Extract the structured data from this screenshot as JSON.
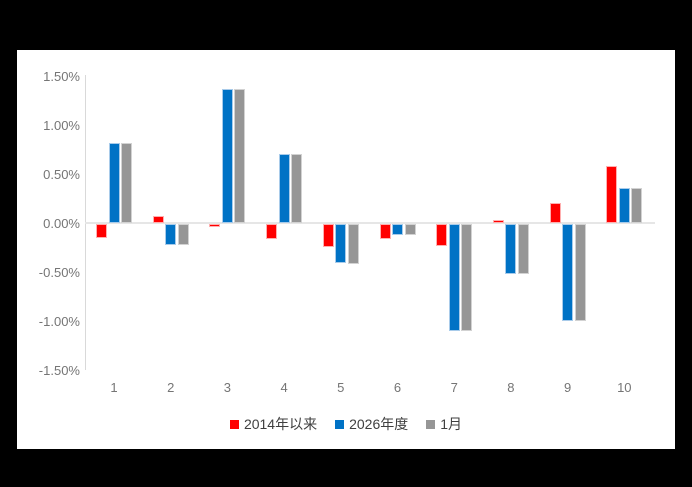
{
  "chart_data": {
    "type": "bar",
    "title": "",
    "xlabel": "",
    "ylabel": "",
    "value_unit": "%",
    "categories": [
      "1",
      "2",
      "3",
      "4",
      "5",
      "6",
      "7",
      "8",
      "9",
      "10"
    ],
    "series": [
      {
        "name": "2014年以来",
        "color": "#FF0000",
        "border_color": "#FFAFAF",
        "values": [
          -0.14,
          0.07,
          -0.03,
          -0.15,
          -0.23,
          -0.15,
          -0.22,
          0.03,
          0.2,
          0.58
        ]
      },
      {
        "name": "2026年度",
        "color": "#0072C5",
        "border_color": "#A8CBEA",
        "values": [
          0.82,
          -0.21,
          1.37,
          0.71,
          -0.4,
          -0.11,
          -1.09,
          -0.51,
          -0.99,
          0.36
        ]
      },
      {
        "name": "1月",
        "color": "#969696",
        "border_color": "#D2D2D2",
        "values": [
          0.82,
          -0.21,
          1.37,
          0.71,
          -0.41,
          -0.11,
          -1.09,
          -0.51,
          -0.99,
          0.36
        ]
      }
    ],
    "y_ticks": [
      {
        "label": "1.50%",
        "value": 1.5
      },
      {
        "label": "1.00%",
        "value": 1.0
      },
      {
        "label": "0.50%",
        "value": 0.5
      },
      {
        "label": "0.00%",
        "value": 0.0
      },
      {
        "label": "-0.50%",
        "value": -0.5
      },
      {
        "label": "-1.00%",
        "value": -1.0
      },
      {
        "label": "-1.50%",
        "value": -1.5
      }
    ],
    "ylim": [
      -1.5,
      1.5
    ],
    "grid": "zero-line-only",
    "legend_position": "bottom"
  },
  "colors": {
    "canvas_background": "#000000",
    "panel_background": "#FFFFFF",
    "axis_line": "#D9D9D9",
    "zero_line": "#E6E6E6",
    "tick_label": "#757575",
    "legend_label": "#3F3F3F"
  }
}
